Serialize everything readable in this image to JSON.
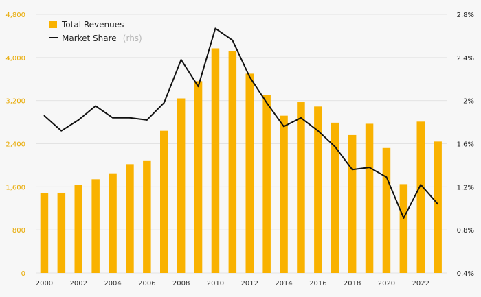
{
  "colors": {
    "bar": "#f9b200",
    "line": "#111111",
    "grid": "#e3e3e3",
    "left_tick": "#e8a900",
    "right_tick": "#222222",
    "background": "#f7f7f7"
  },
  "legend": {
    "revenues_label": "Total Revenues",
    "share_label": "Market Share",
    "share_note": "(rhs)"
  },
  "chart_data": {
    "type": "bar",
    "title": "",
    "xlabel": "",
    "ylabel": "",
    "categories": [
      2000,
      2001,
      2002,
      2003,
      2004,
      2005,
      2006,
      2007,
      2008,
      2009,
      2010,
      2011,
      2012,
      2013,
      2014,
      2015,
      2016,
      2017,
      2018,
      2019,
      2020,
      2021,
      2022,
      2023
    ],
    "x_tick_labels": [
      "2000",
      "2002",
      "2004",
      "2006",
      "2008",
      "2010",
      "2012",
      "2014",
      "2016",
      "2018",
      "2020",
      "2022"
    ],
    "left_axis": {
      "ylim": [
        0,
        4800
      ],
      "ticks": [
        0,
        800,
        1600,
        2400,
        3200,
        4000,
        4800
      ],
      "tick_labels": [
        "0",
        "800",
        "1,600",
        "2,400",
        "3,200",
        "4,000",
        "4,800"
      ]
    },
    "right_axis": {
      "ylim": [
        0.4,
        2.8
      ],
      "ticks": [
        0.4,
        0.8,
        1.2,
        1.6,
        2.0,
        2.4,
        2.8
      ],
      "tick_labels": [
        "0.4%",
        "0.8%",
        "1.2%",
        "1.6%",
        "2%",
        "2.4%",
        "2.8%"
      ]
    },
    "series": [
      {
        "name": "Total Revenues",
        "type": "bar",
        "axis": "left",
        "values": [
          1480,
          1490,
          1640,
          1740,
          1850,
          2020,
          2090,
          2640,
          3240,
          3560,
          4170,
          4120,
          3700,
          3310,
          2920,
          3170,
          3090,
          2790,
          2560,
          2770,
          2320,
          1650,
          2810,
          2440
        ]
      },
      {
        "name": "Market Share",
        "type": "line",
        "axis": "right",
        "values": [
          1.86,
          1.72,
          1.82,
          1.95,
          1.84,
          1.84,
          1.82,
          1.98,
          2.38,
          2.13,
          2.67,
          2.56,
          2.22,
          1.98,
          1.76,
          1.84,
          1.72,
          1.57,
          1.36,
          1.38,
          1.29,
          0.91,
          1.22,
          1.04
        ]
      }
    ],
    "grid": true,
    "legend_position": "top-left"
  }
}
